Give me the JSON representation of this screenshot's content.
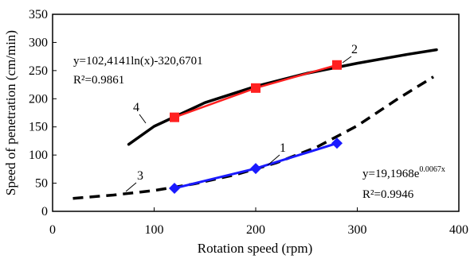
{
  "chart_data": {
    "type": "line",
    "xlabel": "Rotation speed (rpm)",
    "ylabel": "Speed of penetration (cm/min)",
    "xlim": [
      0,
      400
    ],
    "ylim": [
      0,
      350
    ],
    "xticks": [
      0,
      100,
      200,
      300,
      400
    ],
    "yticks": [
      0,
      50,
      100,
      150,
      200,
      250,
      300,
      350
    ],
    "grid": false,
    "legend": "none",
    "series": [
      {
        "label": "1",
        "style": "blue solid with diamond markers",
        "color": "#1a1aff",
        "x": [
          120,
          200,
          280
        ],
        "y": [
          41,
          76,
          121
        ]
      },
      {
        "label": "2",
        "style": "red solid with square markers",
        "color": "#ff2020",
        "x": [
          120,
          200,
          280
        ],
        "y": [
          167,
          219,
          260
        ]
      },
      {
        "label": "3",
        "style": "black dashed exponential fit",
        "color": "#000000",
        "x": [
          20,
          60,
          100,
          140,
          180,
          220,
          260,
          300,
          340,
          375
        ],
        "y": [
          23,
          29,
          37,
          49,
          65,
          86,
          114,
          152,
          200,
          239
        ]
      },
      {
        "label": "4",
        "style": "black solid logarithmic fit",
        "color": "#000000",
        "x": [
          75,
          100,
          150,
          200,
          250,
          300,
          350,
          378
        ],
        "y": [
          119,
          151,
          193,
          222,
          245,
          263,
          279,
          287
        ]
      }
    ],
    "annotations": [
      {
        "id": "eq-log",
        "text": "y=102,4141ln(x)-320,6701"
      },
      {
        "id": "r2-log",
        "text": "R²=0.9861"
      },
      {
        "id": "eq-exp-base",
        "text": "y=19,1968e",
        "sup": "0.0067x"
      },
      {
        "id": "r2-exp",
        "text": "R²=0.9946"
      }
    ]
  }
}
